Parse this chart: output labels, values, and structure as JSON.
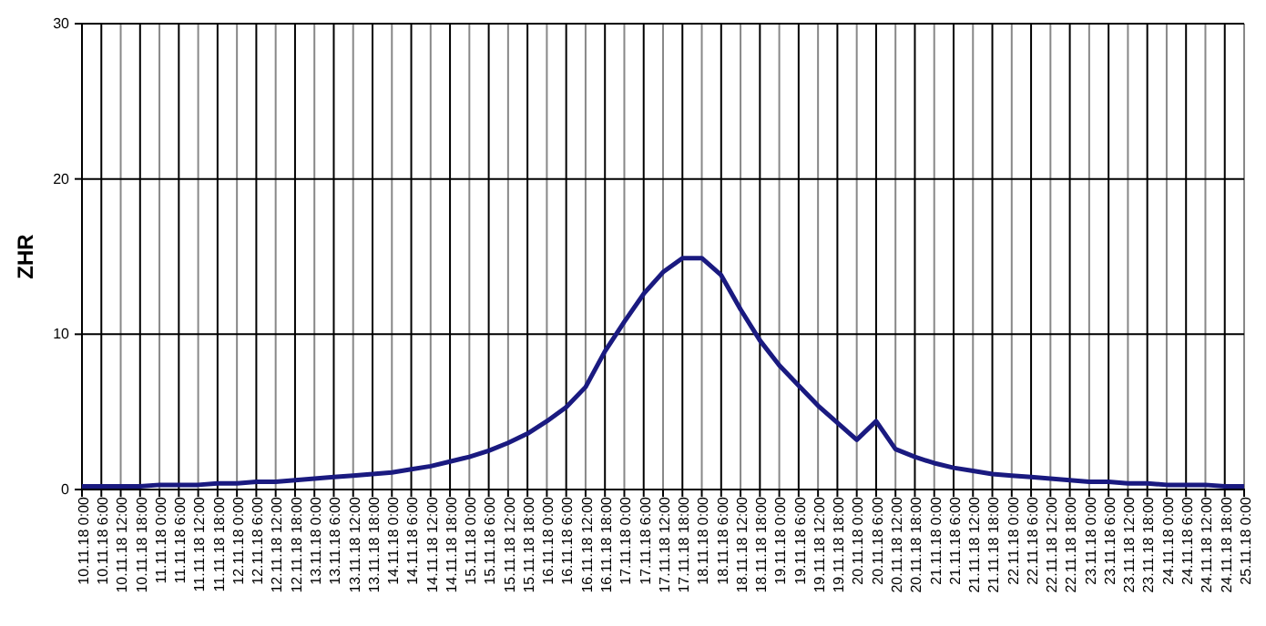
{
  "chart_data": {
    "type": "line",
    "ylabel": "ZHR",
    "categories": [
      "10.11.18 0:00",
      "10.11.18 6:00",
      "10.11.18 12:00",
      "10.11.18 18:00",
      "11.11.18 0:00",
      "11.11.18 6:00",
      "11.11.18 12:00",
      "11.11.18 18:00",
      "12.11.18 0:00",
      "12.11.18 6:00",
      "12.11.18 12:00",
      "12.11.18 18:00",
      "13.11.18 0:00",
      "13.11.18 6:00",
      "13.11.18 12:00",
      "13.11.18 18:00",
      "14.11.18 0:00",
      "14.11.18 6:00",
      "14.11.18 12:00",
      "14.11.18 18:00",
      "15.11.18 0:00",
      "15.11.18 6:00",
      "15.11.18 12:00",
      "15.11.18 18:00",
      "16.11.18 0:00",
      "16.11.18 6:00",
      "16.11.18 12:00",
      "16.11.18 18:00",
      "17.11.18 0:00",
      "17.11.18 6:00",
      "17.11.18 12:00",
      "17.11.18 18:00",
      "18.11.18 0:00",
      "18.11.18 6:00",
      "18.11.18 12:00",
      "18.11.18 18:00",
      "19.11.18 0:00",
      "19.11.18 6:00",
      "19.11.18 12:00",
      "19.11.18 18:00",
      "20.11.18 0:00",
      "20.11.18 6:00",
      "20.11.18 12:00",
      "20.11.18 18:00",
      "21.11.18 0:00",
      "21.11.18 6:00",
      "21.11.18 12:00",
      "21.11.18 18:00",
      "22.11.18 0:00",
      "22.11.18 6:00",
      "22.11.18 12:00",
      "22.11.18 18:00",
      "23.11.18 0:00",
      "23.11.18 6:00",
      "23.11.18 12:00",
      "23.11.18 18:00",
      "24.11.18 0:00",
      "24.11.18 6:00",
      "24.11.18 12:00",
      "24.11.18 18:00",
      "25.11.18 0:00"
    ],
    "series": [
      {
        "color": "#1a1a80",
        "values": [
          0.2,
          0.2,
          0.2,
          0.2,
          0.3,
          0.3,
          0.3,
          0.4,
          0.4,
          0.5,
          0.5,
          0.6,
          0.7,
          0.8,
          0.9,
          1.0,
          1.1,
          1.3,
          1.5,
          1.8,
          2.1,
          2.5,
          3.0,
          3.6,
          4.4,
          5.3,
          6.6,
          8.9,
          10.8,
          12.6,
          14.0,
          14.9,
          14.9,
          13.8,
          11.6,
          9.6,
          8.0,
          6.7,
          5.4,
          4.3,
          3.2,
          4.4,
          2.6,
          2.1,
          1.7,
          1.4,
          1.2,
          1.0,
          0.9,
          0.8,
          0.7,
          0.6,
          0.5,
          0.5,
          0.4,
          0.4,
          0.3,
          0.3,
          0.3,
          0.2,
          0.2
        ]
      }
    ],
    "ylim": [
      0,
      30
    ],
    "yticks": [
      0,
      10,
      20,
      30
    ],
    "grid": true,
    "marker": "none",
    "line_style": "solid"
  }
}
